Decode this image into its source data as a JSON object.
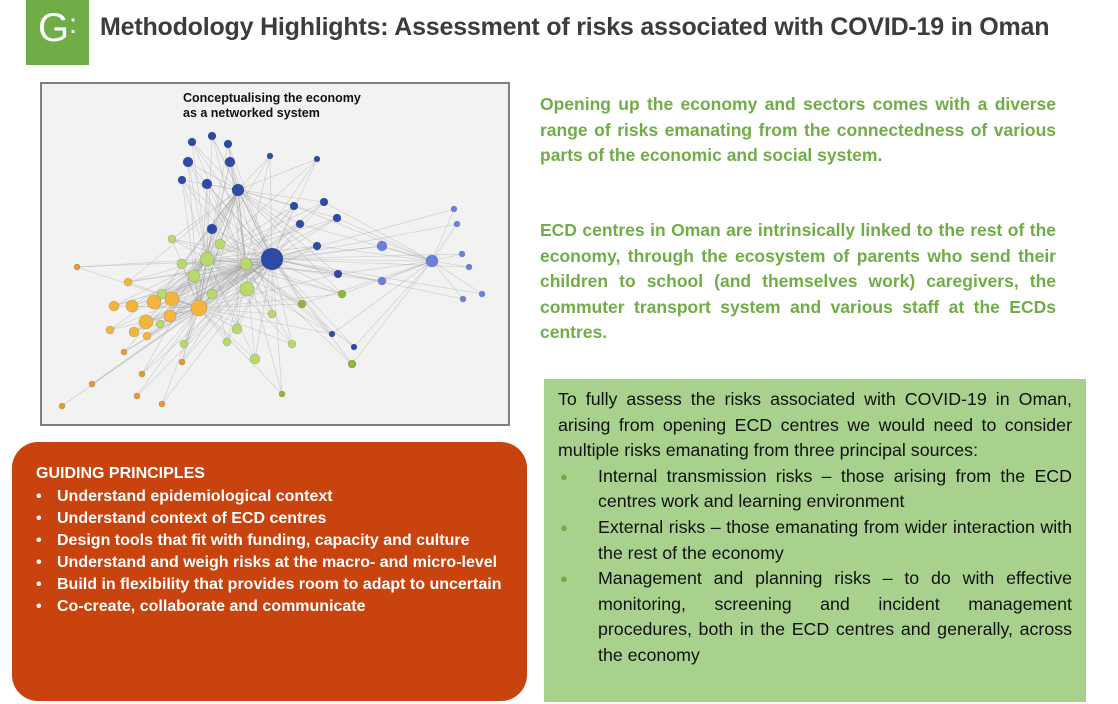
{
  "header": {
    "logo_letter": "G",
    "logo_mark": ":",
    "title": "Methodology Highlights: Assessment of risks associated with COVID-19 in Oman"
  },
  "figure": {
    "title_line1": "Conceptualising the economy",
    "title_line2": "as a networked system"
  },
  "intro": {
    "paragraph1": "Opening up the economy and sectors comes with a diverse range of risks emanating from the connectedness of various parts of the economic and social system.",
    "paragraph2": "ECD centres in Oman are intrinsically linked to the rest of the economy, through the ecosystem of parents who send their children to school (and themselves work) caregivers, the commuter transport system and various staff at the ECDs centres."
  },
  "principles": {
    "heading": "GUIDING PRINCIPLES",
    "bullet": "•",
    "items": [
      "Understand epidemiological context",
      "Understand context of ECD centres",
      "Design tools that fit with funding, capacity and culture",
      "Understand and weigh risks at the macro- and micro-level",
      "Build in flexibility that provides room to adapt to uncertain",
      "Co-create, collaborate and communicate"
    ]
  },
  "sources": {
    "intro": "To fully assess the risks associated with COVID-19 in Oman, arising from opening ECD centres we would need to consider multiple risks emanating from three principal sources:",
    "bullet": "●",
    "items": [
      "Internal transmission risks – those arising from the ECD centres work and learning environment",
      "External risks – those emanating from wider interaction with the rest of the economy",
      "Management and planning risks – to do with effective monitoring, screening and incident management procedures, both in the ECD centres and generally, across the economy"
    ]
  },
  "colors": {
    "brand_green": "#70ad47",
    "light_green": "#a9d18e",
    "principles_orange": "#c9430f"
  }
}
